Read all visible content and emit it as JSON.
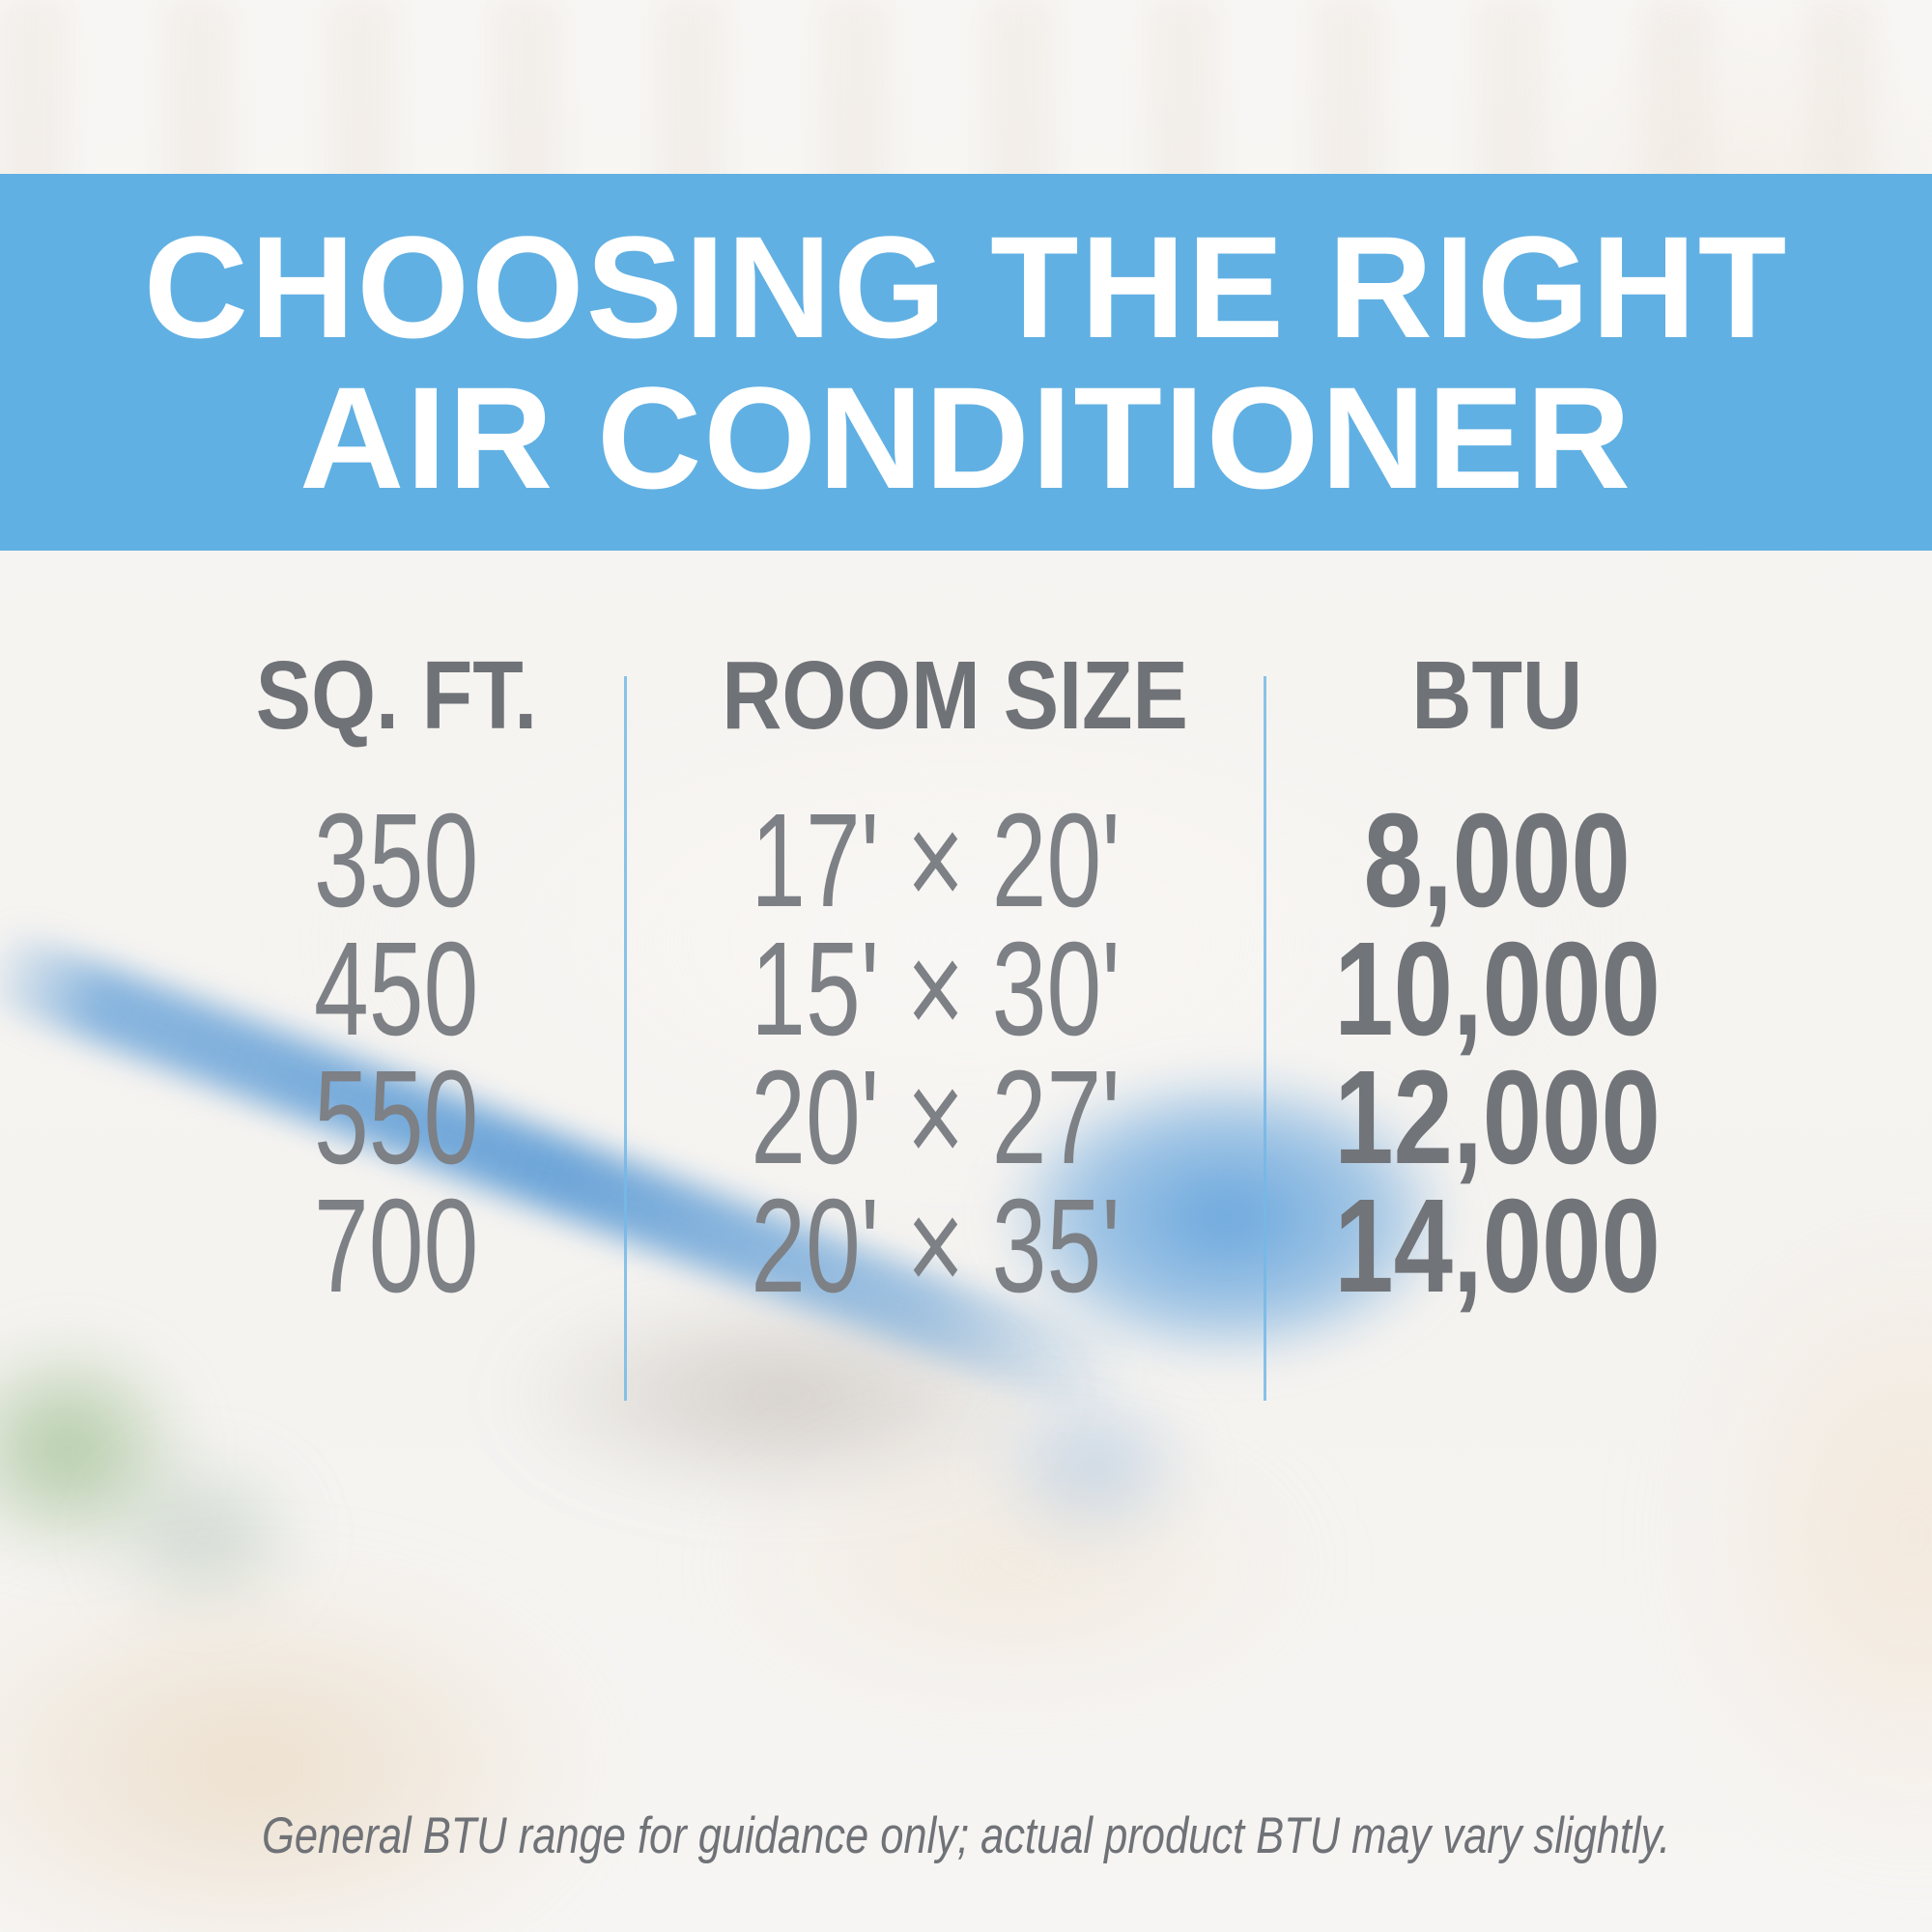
{
  "banner": {
    "title_line1": "CHOOSING THE RIGHT",
    "title_line2": "AIR CONDITIONER"
  },
  "table": {
    "headers": {
      "sqft": "SQ. FT.",
      "room_size": "ROOM SIZE",
      "btu": "BTU"
    },
    "rows": [
      {
        "sqft": "350",
        "room_size": "17' × 20'",
        "btu": "8,000"
      },
      {
        "sqft": "450",
        "room_size": "15' × 30'",
        "btu": "10,000"
      },
      {
        "sqft": "550",
        "room_size": "20' × 27'",
        "btu": "12,000"
      },
      {
        "sqft": "700",
        "room_size": "20' × 35'",
        "btu": "14,000"
      }
    ]
  },
  "footer": {
    "disclaimer": "General BTU range for guidance only; actual product BTU may vary slightly."
  },
  "colors": {
    "banner_blue": "#61b0e3",
    "divider_blue": "#74b9e6",
    "header_gray": "#6f7277",
    "value_gray": "#7d8085",
    "btu_gray": "#717478",
    "banner_text": "#ffffff",
    "background_ivory": "#f6f4f1"
  }
}
